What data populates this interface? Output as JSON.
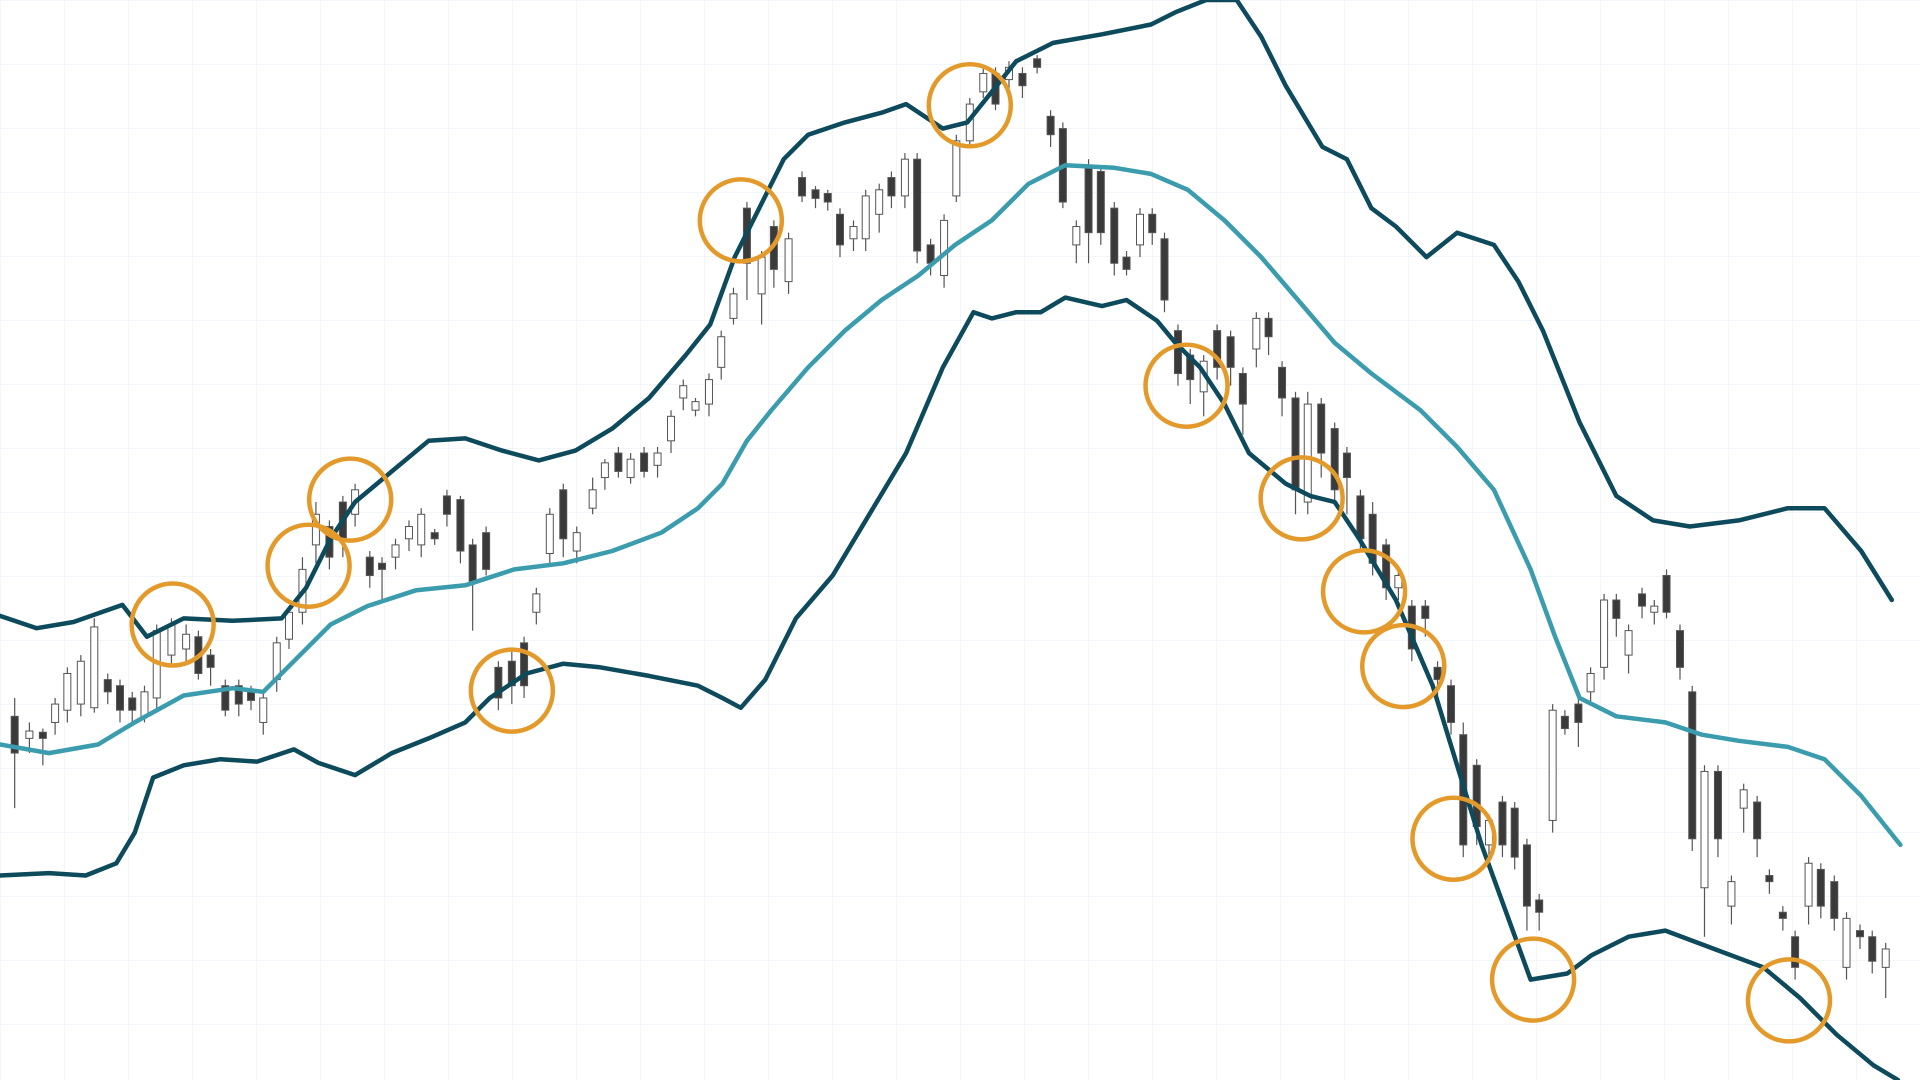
{
  "chart_data": {
    "type": "candlestick",
    "xlim": [
      0,
      156.8
    ],
    "ylim": [
      118,
      1000
    ],
    "candles": {
      "up_color": "#ffffff",
      "down_color": "#3a3a3a",
      "x": [
        1.2,
        2.4,
        3.5,
        4.5,
        5.5,
        6.6,
        7.7,
        8.8,
        9.8,
        10.8,
        11.8,
        12.8,
        14,
        15.2,
        16.2,
        17.2,
        18.4,
        19.5,
        20.5,
        21.5,
        22.6,
        23.6,
        24.7,
        25.8,
        26.9,
        28,
        29,
        30.2,
        31.2,
        32.3,
        33.4,
        34.4,
        35.5,
        36.5,
        37.6,
        38.6,
        39.7,
        40.7,
        41.8,
        42.8,
        43.8,
        44.9,
        46,
        47.1,
        48.4,
        49.4,
        50.5,
        51.5,
        52.6,
        53.7,
        54.8,
        55.8,
        56.8,
        57.9,
        58.9,
        59.9,
        61,
        62.2,
        63.2,
        64.4,
        65.5,
        66.6,
        67.6,
        68.6,
        69.7,
        70.7,
        71.8,
        72.8,
        73.9,
        74.9,
        76,
        77.1,
        78.1,
        79.2,
        80.3,
        81.3,
        82.4,
        83.5,
        84.7,
        85.8,
        86.8,
        87.9,
        88.9,
        89.9,
        91,
        92,
        93.1,
        94.1,
        95.1,
        96.2,
        97.2,
        98.3,
        99.4,
        100.5,
        101.5,
        102.6,
        103.6,
        104.7,
        105.8,
        106.8,
        107.9,
        109,
        110,
        111.1,
        112.1,
        113.2,
        114.2,
        115.3,
        116.4,
        117.4,
        118.5,
        119.5,
        120.6,
        121.6,
        122.7,
        123.7,
        124.7,
        125.7,
        126.8,
        127.8,
        128.9,
        129.9,
        131,
        132,
        133,
        134.1,
        135.1,
        136.1,
        137.2,
        138.2,
        139.2,
        140.3,
        141.4,
        142.4,
        143.5,
        144.5,
        145.6,
        146.6,
        147.7,
        148.7,
        149.8,
        150.8,
        151.9,
        152.9,
        154
      ],
      "open": [
        415,
        397,
        402,
        410,
        420,
        425,
        422,
        445,
        440,
        430,
        415,
        430,
        465,
        470,
        480,
        465,
        440,
        440,
        435,
        410,
        445,
        478,
        500,
        555,
        570,
        590,
        580,
        545,
        540,
        545,
        560,
        555,
        565,
        595,
        592,
        555,
        565,
        455,
        460,
        475,
        500,
        548,
        600,
        550,
        585,
        610,
        630,
        610,
        630,
        620,
        640,
        675,
        665,
        670,
        700,
        740,
        830,
        760,
        815,
        770,
        855,
        845,
        842,
        825,
        805,
        805,
        825,
        855,
        840,
        870,
        800,
        775,
        840,
        885,
        925,
        940,
        935,
        940,
        952,
        905,
        895,
        800,
        865,
        860,
        830,
        790,
        800,
        825,
        805,
        730,
        710,
        680,
        730,
        725,
        695,
        715,
        740,
        700,
        675,
        590,
        670,
        650,
        630,
        595,
        580,
        555,
        520,
        505,
        505,
        455,
        440,
        400,
        375,
        310,
        345,
        340,
        310,
        265,
        330,
        415,
        425,
        435,
        455,
        510,
        465,
        515,
        500,
        530,
        485,
        435,
        275,
        370,
        260,
        340,
        345,
        285,
        255,
        235,
        260,
        290,
        280,
        210,
        240,
        235,
        210
      ],
      "high": [
        430,
        410,
        405,
        430,
        455,
        465,
        495,
        450,
        445,
        435,
        440,
        490,
        495,
        490,
        485,
        470,
        445,
        445,
        440,
        435,
        480,
        505,
        545,
        590,
        575,
        595,
        605,
        550,
        545,
        560,
        575,
        585,
        568,
        600,
        595,
        560,
        570,
        460,
        470,
        480,
        520,
        585,
        605,
        570,
        610,
        625,
        635,
        630,
        635,
        635,
        665,
        690,
        675,
        695,
        730,
        765,
        835,
        795,
        820,
        810,
        860,
        848,
        845,
        830,
        820,
        845,
        850,
        860,
        875,
        875,
        805,
        825,
        890,
        920,
        945,
        945,
        950,
        945,
        955,
        910,
        900,
        820,
        870,
        865,
        835,
        795,
        830,
        830,
        810,
        735,
        715,
        710,
        735,
        730,
        700,
        745,
        745,
        705,
        680,
        680,
        675,
        655,
        635,
        600,
        590,
        560,
        535,
        510,
        510,
        460,
        445,
        410,
        380,
        335,
        350,
        345,
        315,
        270,
        425,
        420,
        430,
        455,
        515,
        515,
        490,
        520,
        510,
        535,
        490,
        440,
        375,
        375,
        285,
        360,
        350,
        290,
        260,
        240,
        300,
        295,
        285,
        255,
        245,
        240,
        230
      ],
      "low": [
        340,
        385,
        375,
        400,
        410,
        415,
        418,
        425,
        410,
        410,
        410,
        420,
        455,
        460,
        445,
        440,
        415,
        415,
        420,
        400,
        435,
        470,
        490,
        540,
        535,
        545,
        570,
        520,
        510,
        535,
        550,
        545,
        555,
        570,
        540,
        485,
        530,
        420,
        425,
        430,
        490,
        540,
        545,
        540,
        580,
        600,
        610,
        605,
        610,
        610,
        630,
        665,
        660,
        660,
        690,
        735,
        755,
        735,
        765,
        760,
        835,
        830,
        828,
        790,
        795,
        795,
        810,
        830,
        830,
        785,
        775,
        765,
        835,
        880,
        920,
        910,
        925,
        920,
        940,
        880,
        830,
        785,
        785,
        800,
        775,
        775,
        790,
        800,
        745,
        685,
        670,
        660,
        690,
        685,
        645,
        700,
        710,
        660,
        580,
        580,
        610,
        590,
        580,
        550,
        530,
        510,
        510,
        460,
        480,
        430,
        400,
        300,
        310,
        300,
        300,
        290,
        240,
        240,
        320,
        400,
        390,
        425,
        445,
        480,
        450,
        495,
        490,
        495,
        445,
        305,
        235,
        300,
        245,
        320,
        300,
        270,
        240,
        200,
        245,
        250,
        240,
        200,
        225,
        205,
        185
      ],
      "close": [
        385,
        403,
        397,
        425,
        450,
        460,
        488,
        435,
        420,
        420,
        435,
        485,
        490,
        482,
        450,
        455,
        420,
        425,
        428,
        430,
        475,
        500,
        535,
        580,
        545,
        560,
        600,
        530,
        535,
        555,
        570,
        580,
        560,
        580,
        550,
        525,
        535,
        430,
        440,
        440,
        515,
        580,
        560,
        565,
        600,
        622,
        615,
        625,
        615,
        630,
        660,
        685,
        672,
        690,
        725,
        760,
        785,
        790,
        780,
        805,
        840,
        838,
        835,
        800,
        815,
        840,
        845,
        840,
        870,
        795,
        785,
        820,
        885,
        915,
        940,
        915,
        945,
        930,
        945,
        890,
        835,
        815,
        810,
        810,
        785,
        780,
        825,
        810,
        755,
        695,
        690,
        705,
        700,
        700,
        670,
        740,
        725,
        675,
        600,
        670,
        630,
        600,
        610,
        560,
        540,
        520,
        530,
        470,
        495,
        445,
        410,
        310,
        325,
        330,
        310,
        300,
        260,
        255,
        420,
        405,
        410,
        450,
        510,
        495,
        485,
        505,
        505,
        500,
        455,
        315,
        370,
        315,
        280,
        355,
        315,
        280,
        250,
        210,
        295,
        260,
        250,
        250,
        235,
        215,
        225
      ]
    },
    "lines": [
      {
        "color": "#0d4a5c",
        "x": [
          0,
          3,
          6,
          10,
          12,
          15,
          19,
          23,
          25,
          27,
          29,
          32,
          35,
          38,
          41,
          44,
          47,
          50,
          53,
          56,
          58,
          60,
          62,
          64,
          66,
          69,
          72,
          74,
          77,
          79,
          81,
          83,
          86,
          90,
          94,
          96,
          98.5,
          101,
          103,
          105,
          108,
          110,
          112,
          114,
          116.5,
          119,
          122,
          124,
          126,
          129,
          132,
          135,
          138,
          142,
          146,
          149,
          152,
          154.5
        ],
        "values": [
          497,
          487,
          492,
          506,
          480,
          495,
          493,
          495,
          520,
          560,
          590,
          615,
          640,
          642,
          632,
          624,
          632,
          650,
          675,
          710,
          735,
          790,
          830,
          870,
          890,
          900,
          908,
          915,
          895,
          900,
          925,
          950,
          965,
          972,
          980,
          990,
          1000,
          1000,
          970,
          930,
          880,
          870,
          830,
          815,
          790,
          810,
          800,
          770,
          730,
          655,
          595,
          575,
          570,
          575,
          585,
          585,
          550,
          510
        ]
      },
      {
        "color": "#3a9cad",
        "x": [
          0,
          4,
          8,
          11,
          15,
          19,
          21.5,
          24,
          27,
          30,
          34,
          38,
          42,
          46,
          50,
          54,
          57,
          59,
          61,
          63,
          66,
          69,
          72,
          75,
          78,
          81,
          84,
          87,
          91,
          94,
          97,
          100,
          103,
          106,
          109,
          112,
          116,
          119,
          122,
          125,
          127,
          129,
          132,
          136,
          139,
          142,
          146,
          149,
          152,
          155.2
        ],
        "values": [
          392,
          385,
          392,
          410,
          432,
          438,
          435,
          460,
          490,
          505,
          518,
          522,
          535,
          540,
          550,
          565,
          585,
          605,
          640,
          665,
          700,
          730,
          755,
          775,
          800,
          820,
          850,
          865,
          863,
          858,
          845,
          820,
          790,
          755,
          720,
          695,
          665,
          635,
          600,
          535,
          480,
          430,
          415,
          410,
          400,
          395,
          390,
          380,
          350,
          310
        ]
      },
      {
        "color": "#0d4a5c",
        "x": [
          0,
          4,
          7,
          9.5,
          11,
          12.5,
          15,
          18,
          21,
          24,
          26,
          29,
          32,
          35,
          38,
          40,
          43,
          46,
          49,
          53,
          57,
          59,
          60.5,
          62.5,
          65,
          68,
          71,
          74,
          77,
          79.5,
          81,
          83,
          85,
          87,
          90,
          92,
          94.5,
          96,
          98,
          100,
          102,
          105,
          107,
          109,
          111,
          114,
          117,
          119,
          121,
          123,
          125,
          128,
          130,
          133,
          136,
          140,
          144,
          147,
          150,
          153,
          155
        ],
        "values": [
          285,
          287,
          285,
          295,
          320,
          365,
          375,
          380,
          378,
          388,
          377,
          367,
          385,
          397,
          410,
          430,
          450,
          458,
          455,
          448,
          440,
          430,
          422,
          445,
          495,
          530,
          580,
          630,
          700,
          745,
          740,
          745,
          745,
          757,
          750,
          755,
          738,
          720,
          700,
          670,
          630,
          605,
          595,
          590,
          560,
          510,
          440,
          375,
          310,
          255,
          200,
          205,
          220,
          235,
          240,
          225,
          210,
          185,
          155,
          130,
          118
        ]
      }
    ],
    "highlights": {
      "color": "#e39a2a",
      "x": [
        14.1,
        25.2,
        28.6,
        41.8,
        60.5,
        79.2,
        96.9,
        106.3,
        111.4,
        114.6,
        118.7,
        125.2,
        146.1
      ],
      "y": [
        490,
        538,
        592,
        436,
        820,
        914,
        685,
        593,
        517,
        456,
        315,
        200,
        183
      ]
    }
  }
}
